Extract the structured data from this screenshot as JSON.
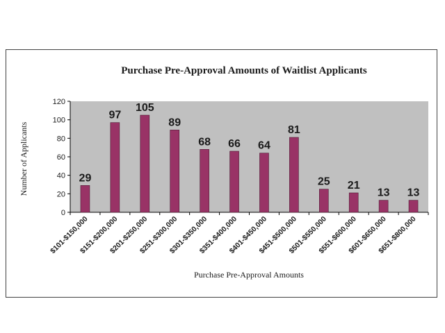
{
  "chart_data": {
    "type": "bar",
    "title": "Purchase Pre-Approval Amounts of Waitlist Applicants",
    "xlabel": "Purchase Pre-Approval Amounts",
    "ylabel": "Number of Applicants",
    "categories": [
      "$101-$150,000",
      "$151-$200,000",
      "$201-$250,000",
      "$251-$300,000",
      "$301-$350,000",
      "$351-$400,000",
      "$401-$450,000",
      "$451-$500,000",
      "$501-$550,000",
      "$551-$600,000",
      "$601-$650,000",
      "$651-$800,000"
    ],
    "values": [
      29,
      97,
      105,
      89,
      68,
      66,
      64,
      81,
      25,
      21,
      13,
      13
    ],
    "ylim": [
      0,
      120
    ],
    "yticks": [
      0,
      20,
      40,
      60,
      80,
      100,
      120
    ],
    "grid": false,
    "legend": "none",
    "colors": {
      "bar": "#993366",
      "bar_edge": "#4d1a33",
      "plot_background": "#c0c0c0",
      "axis": "#000000"
    }
  }
}
